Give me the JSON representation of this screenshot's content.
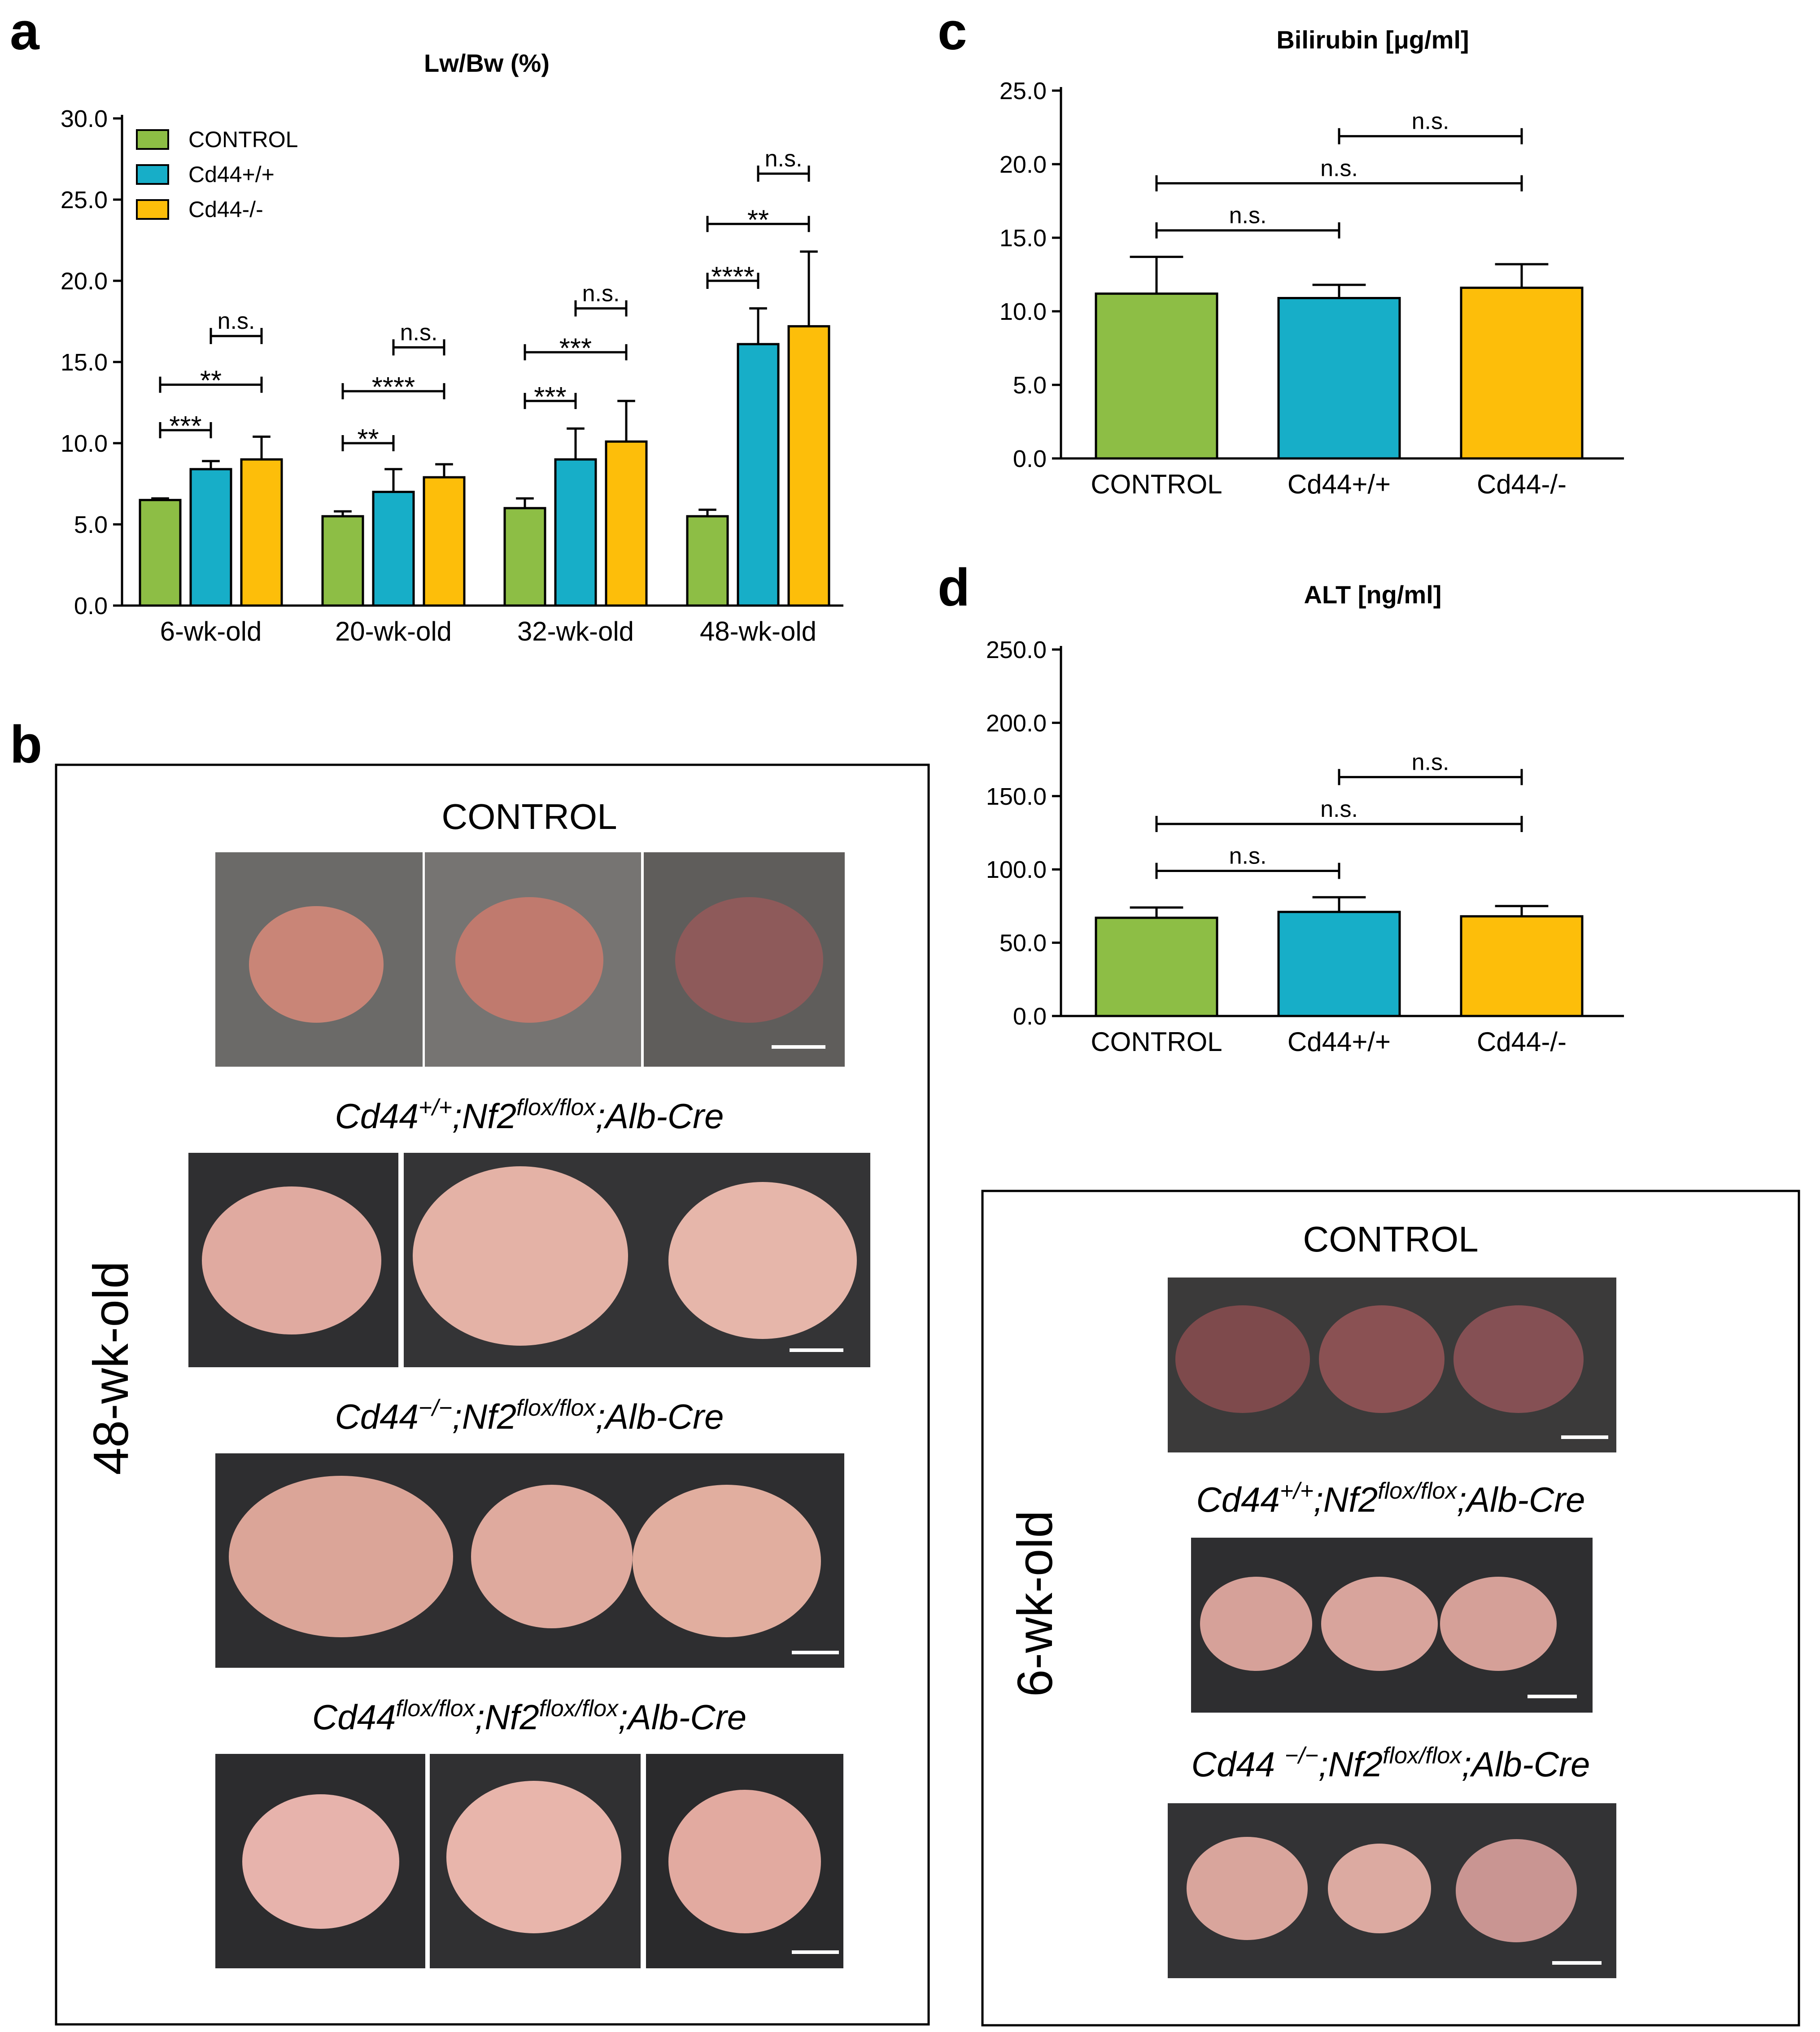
{
  "panel_letters": {
    "a": "a",
    "b": "b",
    "c": "c",
    "d": "d"
  },
  "colors": {
    "control": "#8DBE45",
    "cd44_wt": "#17AEC8",
    "cd44_ko": "#FDBE0A",
    "axis": "#000000",
    "photo_bg": "#3a3a3c",
    "liver": "#d49a8c"
  },
  "chart_data": [
    {
      "id": "a",
      "type": "bar",
      "title": "Lw/Bw (%)",
      "xlabel": "",
      "ylabel": "",
      "ylim": [
        0,
        30
      ],
      "yticks": [
        "0.0",
        "5.0",
        "10.0",
        "15.0",
        "20.0",
        "25.0",
        "30.0"
      ],
      "categories": [
        "6-wk-old",
        "20-wk-old",
        "32-wk-old",
        "48-wk-old"
      ],
      "legend": {
        "placement": "top-left",
        "entries": [
          "CONTROL",
          "Cd44+/+",
          "Cd44-/-"
        ]
      },
      "series": [
        {
          "name": "CONTROL",
          "values": [
            6.5,
            5.5,
            6.0,
            5.5
          ],
          "errors": [
            0.1,
            0.3,
            0.6,
            0.4
          ]
        },
        {
          "name": "Cd44+/+",
          "values": [
            8.4,
            7.0,
            9.0,
            16.1
          ],
          "errors": [
            0.5,
            1.4,
            1.9,
            2.2
          ]
        },
        {
          "name": "Cd44-/-",
          "values": [
            9.0,
            7.9,
            10.1,
            17.2
          ],
          "errors": [
            1.4,
            0.8,
            2.5,
            4.6
          ]
        }
      ],
      "significance": [
        {
          "group": 0,
          "from": 0,
          "to": 1,
          "label": "***",
          "level": 10.8
        },
        {
          "group": 0,
          "from": 0,
          "to": 2,
          "label": "**",
          "level": 13.6
        },
        {
          "group": 0,
          "from": 1,
          "to": 2,
          "label": "n.s.",
          "level": 16.6
        },
        {
          "group": 1,
          "from": 0,
          "to": 1,
          "label": "**",
          "level": 10.0
        },
        {
          "group": 1,
          "from": 0,
          "to": 2,
          "label": "****",
          "level": 13.2
        },
        {
          "group": 1,
          "from": 1,
          "to": 2,
          "label": "n.s.",
          "level": 15.9
        },
        {
          "group": 2,
          "from": 0,
          "to": 1,
          "label": "***",
          "level": 12.6
        },
        {
          "group": 2,
          "from": 0,
          "to": 2,
          "label": "***",
          "level": 15.6
        },
        {
          "group": 2,
          "from": 1,
          "to": 2,
          "label": "n.s.",
          "level": 18.3
        },
        {
          "group": 3,
          "from": 0,
          "to": 1,
          "label": "****",
          "level": 20.0
        },
        {
          "group": 3,
          "from": 0,
          "to": 2,
          "label": "**",
          "level": 23.5
        },
        {
          "group": 3,
          "from": 1,
          "to": 2,
          "label": "n.s.",
          "level": 26.6
        }
      ]
    },
    {
      "id": "c",
      "type": "bar",
      "title": "Bilirubin [μg/ml]",
      "xlabel": "",
      "ylabel": "",
      "ylim": [
        0,
        25
      ],
      "yticks": [
        "0.0",
        "5.0",
        "10.0",
        "15.0",
        "20.0",
        "25.0"
      ],
      "categories": [
        "CONTROL",
        "Cd44+/+",
        "Cd44-/-"
      ],
      "values": [
        11.2,
        10.9,
        11.6
      ],
      "errors": [
        2.5,
        0.9,
        1.6
      ],
      "significance": [
        {
          "from": 0,
          "to": 1,
          "label": "n.s.",
          "level": 15.5
        },
        {
          "from": 0,
          "to": 2,
          "label": "n.s.",
          "level": 18.7
        },
        {
          "from": 1,
          "to": 2,
          "label": "n.s.",
          "level": 21.9
        }
      ]
    },
    {
      "id": "d",
      "type": "bar",
      "title": "ALT [ng/ml]",
      "xlabel": "",
      "ylabel": "",
      "ylim": [
        0,
        250
      ],
      "yticks": [
        "0.0",
        "50.0",
        "100.0",
        "150.0",
        "200.0",
        "250.0"
      ],
      "categories": [
        "CONTROL",
        "Cd44+/+",
        "Cd44-/-"
      ],
      "values": [
        67,
        71,
        68
      ],
      "errors": [
        7,
        10,
        7
      ],
      "significance": [
        {
          "from": 0,
          "to": 1,
          "label": "n.s.",
          "level": 99
        },
        {
          "from": 0,
          "to": 2,
          "label": "n.s.",
          "level": 131
        },
        {
          "from": 1,
          "to": 2,
          "label": "n.s.",
          "level": 163
        }
      ]
    }
  ],
  "panel_b": {
    "age_label": "48-wk-old",
    "rows": [
      {
        "title": "CONTROL",
        "genotype": null
      },
      {
        "title": null,
        "genotype": {
          "g1": "Cd44",
          "s1": "+/+",
          "mid": ";Nf2",
          "s2": "flox/flox",
          "end": ";Alb-Cre"
        }
      },
      {
        "title": null,
        "genotype": {
          "g1": "Cd44",
          "s1": "−/−",
          "mid": ";Nf2",
          "s2": "flox/flox",
          "end": ";Alb-Cre"
        }
      },
      {
        "title": null,
        "genotype": {
          "g1": "Cd44",
          "s1": "flox/flox",
          "mid": ";Nf2",
          "s2": "flox/flox",
          "end": ";Alb-Cre"
        }
      }
    ]
  },
  "panel_e": {
    "age_label": "6-wk-old",
    "rows": [
      {
        "title": "CONTROL",
        "genotype": null
      },
      {
        "title": null,
        "genotype": {
          "g1": "Cd44",
          "s1": "+/+",
          "mid": ";Nf2",
          "s2": "flox/flox",
          "end": ";Alb-Cre"
        }
      },
      {
        "title": null,
        "genotype": {
          "g1": "Cd44 ",
          "s1": "−/−",
          "mid": ";Nf2",
          "s2": "flox/flox",
          "end": ";Alb-Cre"
        }
      }
    ]
  }
}
